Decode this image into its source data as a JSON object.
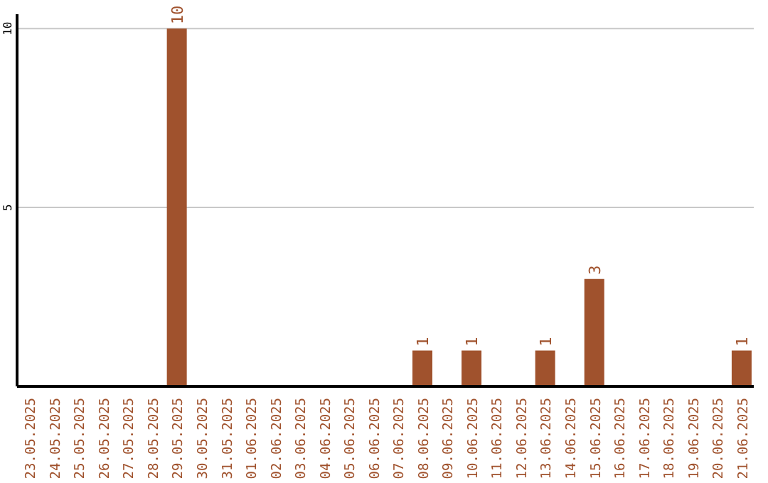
{
  "chart_data": {
    "type": "bar",
    "categories": [
      "23.05.2025",
      "24.05.2025",
      "25.05.2025",
      "26.05.2025",
      "27.05.2025",
      "28.05.2025",
      "29.05.2025",
      "30.05.2025",
      "31.05.2025",
      "01.06.2025",
      "02.06.2025",
      "03.06.2025",
      "04.06.2025",
      "05.06.2025",
      "06.06.2025",
      "07.06.2025",
      "08.06.2025",
      "09.06.2025",
      "10.06.2025",
      "11.06.2025",
      "12.06.2025",
      "13.06.2025",
      "14.06.2025",
      "15.06.2025",
      "16.06.2025",
      "17.06.2025",
      "18.06.2025",
      "19.06.2025",
      "20.06.2025",
      "21.06.2025"
    ],
    "values": [
      0,
      0,
      0,
      0,
      0,
      0,
      10,
      0,
      0,
      0,
      0,
      0,
      0,
      0,
      0,
      0,
      1,
      0,
      1,
      0,
      0,
      1,
      0,
      3,
      0,
      0,
      0,
      0,
      0,
      1
    ],
    "value_labels": [
      null,
      null,
      null,
      null,
      null,
      null,
      "10",
      null,
      null,
      null,
      null,
      null,
      null,
      null,
      null,
      null,
      "1",
      null,
      "1",
      null,
      null,
      "1",
      null,
      "3",
      null,
      null,
      null,
      null,
      null,
      "1"
    ],
    "color": "#a0522d",
    "ylim": [
      0,
      10.4
    ],
    "yticks": [
      5,
      10
    ],
    "grid": "y",
    "legend": false
  }
}
